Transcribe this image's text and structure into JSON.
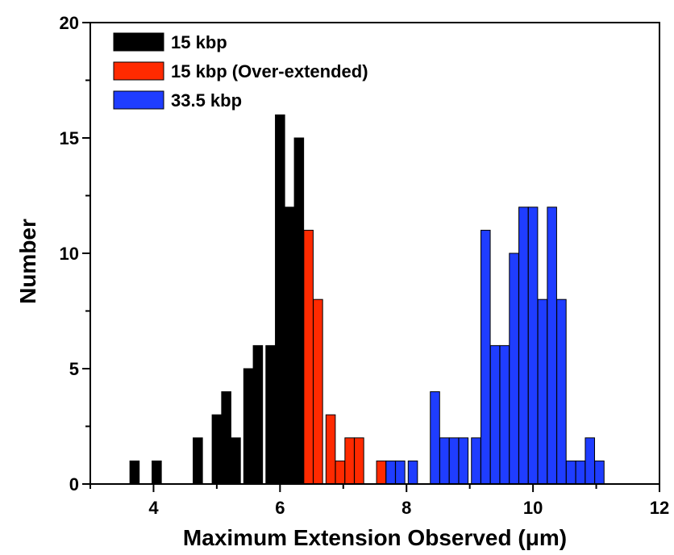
{
  "chart_data": {
    "type": "bar",
    "title": "",
    "xlabel": "Maximum Extension Observed (μm)",
    "ylabel": "Number",
    "xlim": [
      3,
      12
    ],
    "ylim": [
      0,
      20
    ],
    "xticks": [
      4,
      6,
      8,
      10,
      12
    ],
    "yticks": [
      0,
      5,
      10,
      15,
      20
    ],
    "bin_width": 0.16,
    "legend_position": "top-left",
    "series": [
      {
        "name": "15 kbp",
        "color": "#000000",
        "x": [
          3.7,
          4.05,
          4.7,
          5.0,
          5.15,
          5.3,
          5.5,
          5.65,
          5.85,
          6.0,
          6.15,
          6.3
        ],
        "values": [
          1,
          1,
          2,
          3,
          4,
          2,
          5,
          6,
          6,
          16,
          12,
          15
        ]
      },
      {
        "name": "15 kbp (Over-extended)",
        "color": "#ff2a00",
        "x": [
          6.45,
          6.6,
          6.8,
          6.95,
          7.1,
          7.25,
          7.6
        ],
        "values": [
          11,
          8,
          3,
          1,
          2,
          2,
          1
        ]
      },
      {
        "name": "33.5 kbp",
        "color": "#1f3dff",
        "x": [
          7.75,
          7.9,
          8.1,
          8.45,
          8.6,
          8.75,
          8.9,
          9.1,
          9.25,
          9.4,
          9.55,
          9.7,
          9.85,
          10.0,
          10.15,
          10.3,
          10.45,
          10.6,
          10.75,
          10.9,
          11.05
        ],
        "values": [
          1,
          1,
          1,
          4,
          2,
          2,
          2,
          2,
          11,
          6,
          6,
          10,
          12,
          12,
          8,
          12,
          8,
          1,
          1,
          2,
          1
        ]
      }
    ]
  }
}
